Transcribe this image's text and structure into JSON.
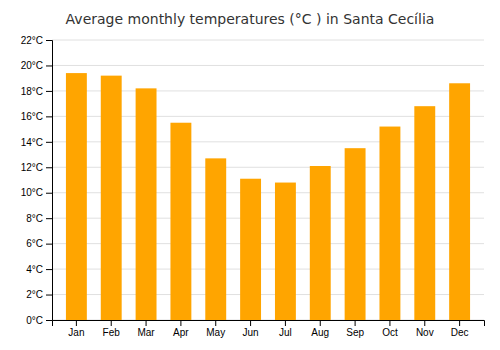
{
  "chart_data": {
    "type": "bar",
    "title": "Average monthly temperatures (°C ) in Santa Cecília",
    "categories": [
      "Jan",
      "Feb",
      "Mar",
      "Apr",
      "May",
      "Jun",
      "Jul",
      "Aug",
      "Sep",
      "Oct",
      "Nov",
      "Dec"
    ],
    "values": [
      19.4,
      19.2,
      18.2,
      15.5,
      12.7,
      11.1,
      10.8,
      12.1,
      13.5,
      15.2,
      16.8,
      18.6
    ],
    "color": "#FFA500",
    "ylim": [
      0,
      22
    ],
    "yticks": [
      {
        "value": 0,
        "label": "0°C"
      },
      {
        "value": 2,
        "label": "2°C"
      },
      {
        "value": 4,
        "label": "4°C"
      },
      {
        "value": 6,
        "label": "6°C"
      },
      {
        "value": 8,
        "label": "8°C"
      },
      {
        "value": 10,
        "label": "10°C"
      },
      {
        "value": 12,
        "label": "12°C"
      },
      {
        "value": 14,
        "label": "14°C"
      },
      {
        "value": 16,
        "label": "16°C"
      },
      {
        "value": 18,
        "label": "18°C"
      },
      {
        "value": 20,
        "label": "20°C"
      },
      {
        "value": 22,
        "label": "22°C"
      }
    ],
    "grid": true
  }
}
